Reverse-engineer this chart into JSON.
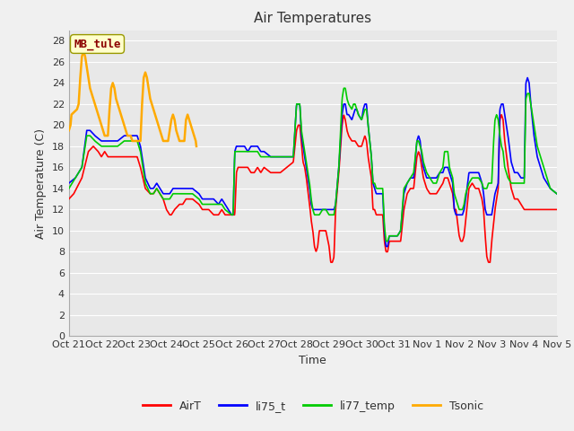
{
  "title": "Air Temperatures",
  "xlabel": "Time",
  "ylabel": "Air Temperature (C)",
  "ylim": [
    0,
    29
  ],
  "yticks": [
    0,
    2,
    4,
    6,
    8,
    10,
    12,
    14,
    16,
    18,
    20,
    22,
    24,
    26,
    28
  ],
  "xtick_labels": [
    "Oct 21",
    "Oct 22",
    "Oct 23",
    "Oct 24",
    "Oct 25",
    "Oct 26",
    "Oct 27",
    "Oct 28",
    "Oct 29",
    "Oct 30",
    "Oct 31",
    "Nov 1",
    "Nov 2",
    "Nov 3",
    "Nov 4",
    "Nov 5"
  ],
  "colors": {
    "AirT": "#ff0000",
    "li75_t": "#0000ff",
    "li77_temp": "#00cc00",
    "Tsonic": "#ffaa00"
  },
  "annotation_text": "MB_tule",
  "annotation_color": "#8b0000",
  "annotation_bg": "#ffffcc",
  "annotation_edge": "#999900",
  "fig_bg": "#f0f0f0",
  "plot_bg": "#e8e8e8",
  "grid_color": "#ffffff",
  "title_fontsize": 11,
  "axis_fontsize": 9,
  "tick_fontsize": 8,
  "legend_fontsize": 9
}
